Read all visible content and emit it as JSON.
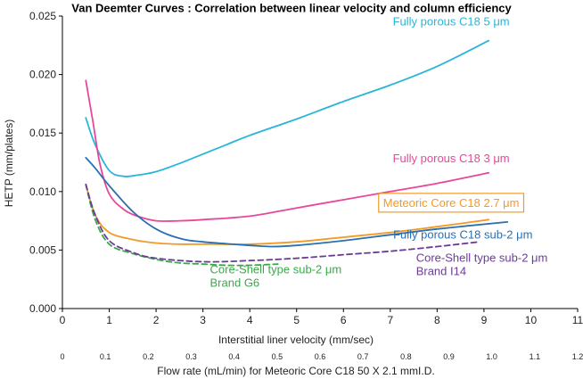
{
  "chart_data": {
    "type": "line",
    "title": "Van Deemter Curves : Correlation between linear velocity and column efficiency",
    "xlabel": "Interstitial liner velocity (mm/sec)",
    "ylabel": "HETP (mm/plates)",
    "x2label": "Flow rate (mL/min) for Meteoric Core C18  50 X 2.1 mmI.D.",
    "xlim": [
      0,
      11
    ],
    "ylim": [
      0,
      0.025
    ],
    "x_ticks": [
      "0",
      "1",
      "2",
      "3",
      "4",
      "5",
      "6",
      "7",
      "8",
      "9",
      "10",
      "11"
    ],
    "y_ticks": [
      "0.000",
      "0.005",
      "0.010",
      "0.015",
      "0.020",
      "0.025"
    ],
    "x2_ticks": [
      "0",
      "0.1",
      "0.2",
      "0.3",
      "0.4",
      "0.5",
      "0.6",
      "0.7",
      "0.8",
      "0.9",
      "1.0",
      "1.1",
      "1.2"
    ],
    "x2_max": 1.2,
    "grid": false,
    "series": [
      {
        "name": "Fully porous C18 5 μm",
        "color": "#29b5d8",
        "dashed": false,
        "x": [
          0.5,
          0.7,
          1.0,
          1.3,
          1.6,
          2.0,
          2.5,
          3.0,
          3.5,
          4.0,
          5.0,
          6.0,
          7.0,
          8.0,
          9.1
        ],
        "y": [
          0.0163,
          0.014,
          0.0118,
          0.0113,
          0.0114,
          0.0117,
          0.0124,
          0.0132,
          0.014,
          0.0148,
          0.0162,
          0.0177,
          0.0191,
          0.0207,
          0.0229
        ]
      },
      {
        "name": "Fully porous C18 3 μm",
        "color": "#e8479a",
        "dashed": false,
        "x": [
          0.5,
          0.65,
          0.8,
          1.0,
          1.3,
          1.6,
          2.0,
          2.5,
          3.0,
          4.0,
          5.0,
          6.0,
          7.0,
          8.0,
          9.1
        ],
        "y": [
          0.0195,
          0.016,
          0.0124,
          0.0098,
          0.0085,
          0.0079,
          0.0075,
          0.0075,
          0.0076,
          0.0079,
          0.0086,
          0.0093,
          0.01,
          0.0107,
          0.0116
        ]
      },
      {
        "name": "Meteoric Core C18 2.7 μm",
        "color": "#f39a26",
        "dashed": false,
        "x": [
          0.5,
          0.7,
          1.0,
          1.5,
          2.0,
          2.5,
          3.0,
          4.0,
          5.0,
          6.0,
          7.0,
          8.0,
          9.1
        ],
        "y": [
          0.0106,
          0.008,
          0.0065,
          0.0059,
          0.0056,
          0.0055,
          0.0055,
          0.0055,
          0.0057,
          0.0061,
          0.0065,
          0.007,
          0.0076
        ]
      },
      {
        "name": "Fully porous C18 sub-2 μm",
        "color": "#2a6fb0",
        "dashed": false,
        "x": [
          0.5,
          0.7,
          1.0,
          1.5,
          2.0,
          2.5,
          3.0,
          4.0,
          4.5,
          5.0,
          6.0,
          7.0,
          8.0,
          9.5
        ],
        "y": [
          0.0129,
          0.012,
          0.0105,
          0.0083,
          0.0068,
          0.006,
          0.0057,
          0.0054,
          0.0053,
          0.0054,
          0.0058,
          0.0063,
          0.0068,
          0.0074
        ]
      },
      {
        "name": "Core-Shell type sub-2 μm Brand G6",
        "color": "#3aa84a",
        "dashed": true,
        "x": [
          0.5,
          0.7,
          1.0,
          1.5,
          2.0,
          2.5,
          3.0,
          3.5,
          4.0,
          4.6
        ],
        "y": [
          0.0106,
          0.0076,
          0.0055,
          0.0047,
          0.0042,
          0.0039,
          0.0038,
          0.0037,
          0.0037,
          0.0038
        ]
      },
      {
        "name": "Core-Shell type sub-2 μm Brand I14",
        "color": "#6b3b98",
        "dashed": true,
        "x": [
          0.5,
          0.7,
          1.0,
          1.5,
          2.0,
          3.0,
          4.0,
          5.0,
          6.0,
          7.0,
          8.0,
          8.9
        ],
        "y": [
          0.0106,
          0.008,
          0.0058,
          0.0048,
          0.0043,
          0.004,
          0.0041,
          0.0043,
          0.0046,
          0.0049,
          0.0053,
          0.0057
        ]
      }
    ],
    "annotations": [
      {
        "lines": [
          "Fully porous C18 5 μm"
        ],
        "color": "#29b5d8",
        "x": 8.3,
        "y": 0.0242,
        "anchor": "middle",
        "box": false
      },
      {
        "lines": [
          "Fully porous C18 3 μm"
        ],
        "color": "#e8479a",
        "x": 8.3,
        "y": 0.0125,
        "anchor": "middle",
        "box": false
      },
      {
        "lines": [
          "Meteoric Core C18 2.7 μm"
        ],
        "color": "#f39a26",
        "x": 8.3,
        "y": 0.0087,
        "anchor": "middle",
        "box": true
      },
      {
        "lines": [
          "Fully porous C18 sub-2 μm"
        ],
        "color": "#2a6fb0",
        "x": 8.55,
        "y": 0.006,
        "anchor": "middle",
        "box": false
      },
      {
        "lines": [
          "Core-Shell type sub-2 μm",
          "Brand G6"
        ],
        "color": "#3aa84a",
        "x": 3.15,
        "y": 0.003,
        "anchor": "start",
        "box": false
      },
      {
        "lines": [
          "Core-Shell type sub-2 μm",
          "Brand I14"
        ],
        "color": "#6b3b98",
        "x": 7.55,
        "y": 0.004,
        "anchor": "start",
        "box": false
      }
    ]
  }
}
